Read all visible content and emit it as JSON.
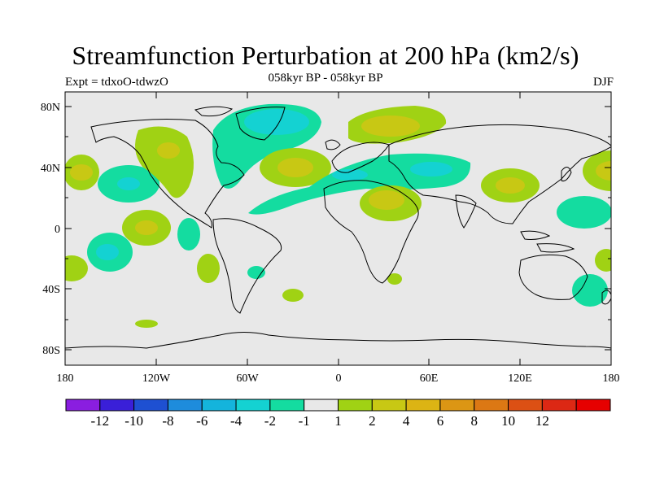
{
  "header": {
    "title": "Streamfunction Perturbation at 200 hPa (km2/s)",
    "subtitle": "058kyr BP - 058kyr BP",
    "left_label": "Expt = tdxoO-tdwzO",
    "right_label": "DJF"
  },
  "map": {
    "lat_ticks": [
      "80N",
      "40N",
      "0",
      "40S",
      "80S"
    ],
    "lon_ticks": [
      "180",
      "120W",
      "60W",
      "0",
      "60E",
      "120E",
      "180"
    ],
    "background_color": "#e8e8e8"
  },
  "colorbar": {
    "colors": [
      "#8a1ee0",
      "#3a1fd8",
      "#1e50d2",
      "#1e8cdc",
      "#14b4dc",
      "#14d2d2",
      "#14dca0",
      "#e8e8e8",
      "#a0d214",
      "#c8c814",
      "#dcb414",
      "#dc9614",
      "#dc7814",
      "#dc5014",
      "#dc2814",
      "#e60000"
    ],
    "labels": [
      "-12",
      "-10",
      "-8",
      "-6",
      "-4",
      "-2",
      "-1",
      "1",
      "2",
      "4",
      "6",
      "8",
      "10",
      "12"
    ]
  }
}
